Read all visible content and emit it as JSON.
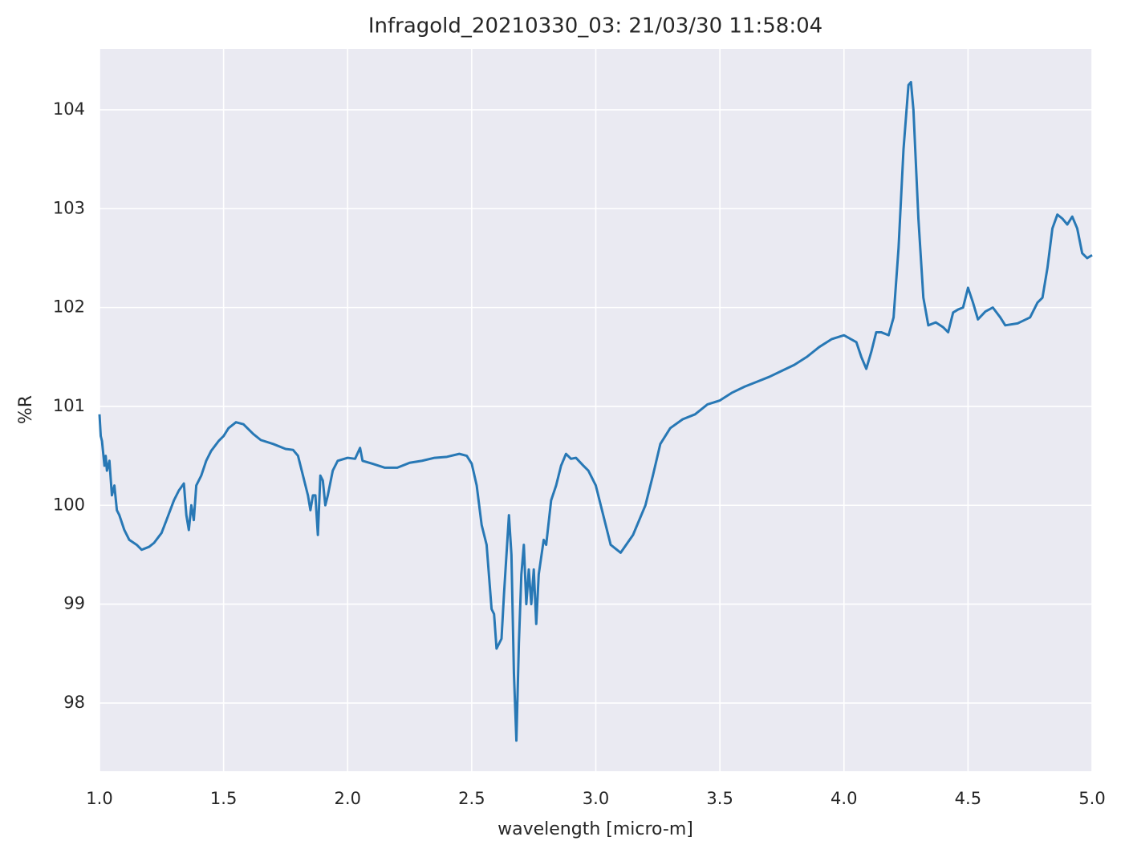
{
  "chart_data": {
    "type": "line",
    "title": "Infragold_20210330_03:  21/03/30 11:58:04",
    "x_label": "wavelength [micro-m]",
    "y_label": "%R",
    "xlim": [
      1.0,
      5.0
    ],
    "ylim": [
      97.31,
      104.616
    ],
    "xticks": [
      {
        "value": 1.0,
        "label": "1.0"
      },
      {
        "value": 1.5,
        "label": "1.5"
      },
      {
        "value": 2.0,
        "label": "2.0"
      },
      {
        "value": 2.5,
        "label": "2.5"
      },
      {
        "value": 3.0,
        "label": "3.0"
      },
      {
        "value": 3.5,
        "label": "3.5"
      },
      {
        "value": 4.0,
        "label": "4.0"
      },
      {
        "value": 4.5,
        "label": "4.5"
      },
      {
        "value": 5.0,
        "label": "5.0"
      }
    ],
    "yticks": [
      98,
      99,
      100,
      101,
      102,
      103,
      104
    ],
    "grid": true,
    "background": "#eaeaf2",
    "color": "#2878b5",
    "x": [
      1.0,
      1.005,
      1.01,
      1.02,
      1.025,
      1.03,
      1.04,
      1.05,
      1.06,
      1.07,
      1.08,
      1.1,
      1.12,
      1.15,
      1.17,
      1.2,
      1.22,
      1.25,
      1.27,
      1.3,
      1.32,
      1.34,
      1.35,
      1.36,
      1.37,
      1.38,
      1.39,
      1.41,
      1.43,
      1.45,
      1.48,
      1.5,
      1.52,
      1.55,
      1.58,
      1.62,
      1.65,
      1.7,
      1.75,
      1.78,
      1.8,
      1.82,
      1.84,
      1.85,
      1.86,
      1.87,
      1.88,
      1.89,
      1.9,
      1.91,
      1.92,
      1.94,
      1.96,
      2.0,
      2.03,
      2.05,
      2.06,
      2.1,
      2.15,
      2.2,
      2.25,
      2.3,
      2.35,
      2.4,
      2.45,
      2.48,
      2.5,
      2.52,
      2.54,
      2.56,
      2.58,
      2.59,
      2.6,
      2.62,
      2.63,
      2.65,
      2.66,
      2.67,
      2.68,
      2.69,
      2.7,
      2.71,
      2.72,
      2.73,
      2.74,
      2.75,
      2.76,
      2.77,
      2.79,
      2.8,
      2.82,
      2.84,
      2.86,
      2.88,
      2.9,
      2.92,
      2.95,
      2.97,
      3.0,
      3.03,
      3.06,
      3.1,
      3.15,
      3.2,
      3.23,
      3.26,
      3.3,
      3.35,
      3.4,
      3.45,
      3.5,
      3.55,
      3.6,
      3.65,
      3.7,
      3.75,
      3.8,
      3.85,
      3.9,
      3.95,
      4.0,
      4.05,
      4.07,
      4.09,
      4.11,
      4.13,
      4.15,
      4.18,
      4.2,
      4.22,
      4.24,
      4.26,
      4.27,
      4.28,
      4.3,
      4.32,
      4.34,
      4.37,
      4.4,
      4.42,
      4.44,
      4.46,
      4.48,
      4.5,
      4.52,
      4.54,
      4.57,
      4.6,
      4.63,
      4.65,
      4.7,
      4.75,
      4.78,
      4.8,
      4.82,
      4.84,
      4.86,
      4.88,
      4.9,
      4.92,
      4.94,
      4.96,
      4.98,
      5.0
    ],
    "values": [
      100.92,
      100.7,
      100.65,
      100.4,
      100.5,
      100.35,
      100.45,
      100.1,
      100.2,
      99.95,
      99.9,
      99.75,
      99.65,
      99.6,
      99.55,
      99.58,
      99.62,
      99.72,
      99.85,
      100.05,
      100.15,
      100.22,
      99.9,
      99.75,
      100.0,
      99.85,
      100.2,
      100.3,
      100.45,
      100.55,
      100.65,
      100.7,
      100.78,
      100.84,
      100.82,
      100.72,
      100.66,
      100.62,
      100.57,
      100.56,
      100.5,
      100.3,
      100.1,
      99.95,
      100.1,
      100.1,
      99.7,
      100.3,
      100.25,
      100.0,
      100.1,
      100.35,
      100.45,
      100.48,
      100.47,
      100.58,
      100.45,
      100.42,
      100.38,
      100.38,
      100.43,
      100.45,
      100.48,
      100.49,
      100.52,
      100.5,
      100.42,
      100.2,
      99.8,
      99.6,
      98.95,
      98.9,
      98.55,
      98.65,
      99.1,
      99.9,
      99.5,
      98.3,
      97.62,
      98.6,
      99.3,
      99.6,
      99.0,
      99.35,
      99.0,
      99.35,
      98.8,
      99.3,
      99.65,
      99.6,
      100.05,
      100.2,
      100.4,
      100.52,
      100.47,
      100.48,
      100.4,
      100.35,
      100.2,
      99.9,
      99.6,
      99.52,
      99.7,
      100.0,
      100.3,
      100.62,
      100.78,
      100.87,
      100.92,
      101.02,
      101.06,
      101.14,
      101.2,
      101.25,
      101.3,
      101.36,
      101.42,
      101.5,
      101.6,
      101.68,
      101.72,
      101.65,
      101.5,
      101.38,
      101.55,
      101.75,
      101.75,
      101.72,
      101.9,
      102.6,
      103.6,
      104.25,
      104.28,
      104.0,
      102.9,
      102.1,
      101.82,
      101.85,
      101.8,
      101.75,
      101.95,
      101.98,
      102.0,
      102.2,
      102.05,
      101.88,
      101.96,
      102.0,
      101.9,
      101.82,
      101.84,
      101.9,
      102.05,
      102.1,
      102.4,
      102.8,
      102.94,
      102.9,
      102.84,
      102.92,
      102.8,
      102.55,
      102.5,
      102.53
    ]
  }
}
